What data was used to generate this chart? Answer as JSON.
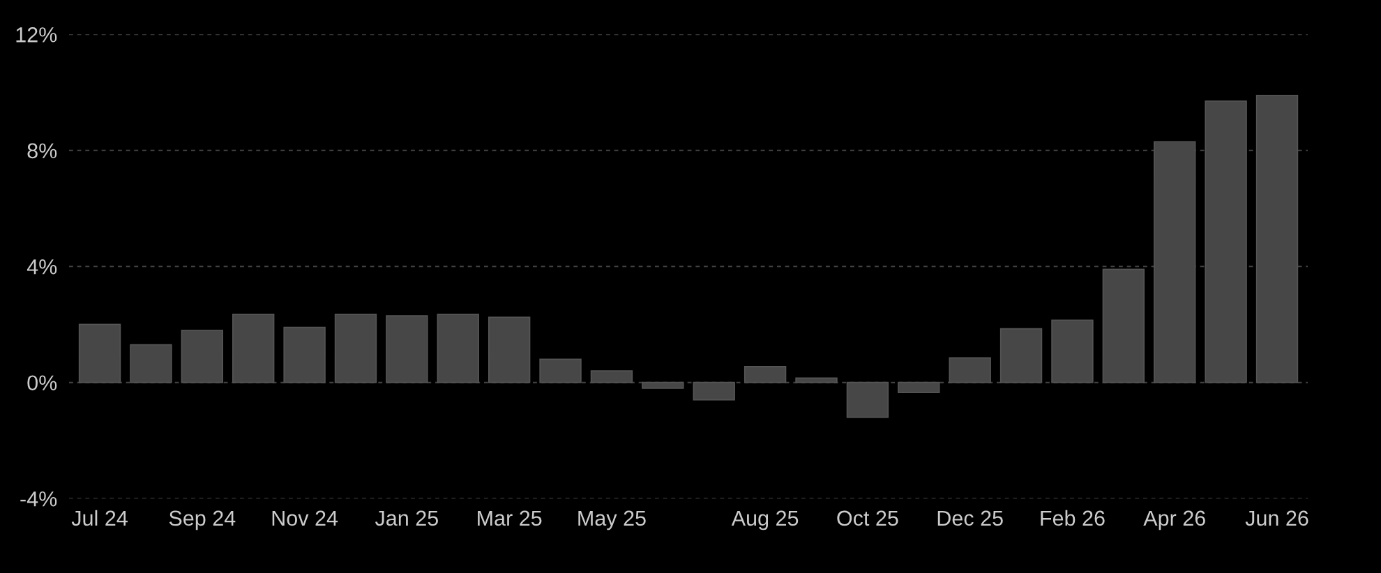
{
  "chart_data": {
    "type": "bar",
    "categories": [
      "Jul 24",
      null,
      "Sep 24",
      null,
      "Nov 24",
      null,
      "Jan 25",
      null,
      "Mar 25",
      null,
      "May 25",
      null,
      null,
      "Aug 25",
      null,
      "Oct 25",
      null,
      "Dec 25",
      null,
      "Feb 26",
      null,
      "Apr 26",
      null,
      "Jun 26"
    ],
    "values": [
      2.0,
      1.3,
      1.8,
      2.35,
      1.9,
      2.35,
      2.3,
      2.35,
      2.25,
      0.8,
      0.4,
      -0.2,
      -0.6,
      0.55,
      0.15,
      -1.2,
      -0.35,
      0.85,
      1.85,
      2.15,
      3.9,
      8.3,
      9.7,
      9.9
    ],
    "color": "#474747",
    "ylim": [
      -4,
      12
    ],
    "yticks": [
      {
        "value": -4,
        "label": "-4%"
      },
      {
        "value": 0,
        "label": "0%"
      },
      {
        "value": 4,
        "label": "4%"
      },
      {
        "value": 8,
        "label": "8%"
      },
      {
        "value": 12,
        "label": "12%"
      }
    ],
    "grid": "y"
  }
}
